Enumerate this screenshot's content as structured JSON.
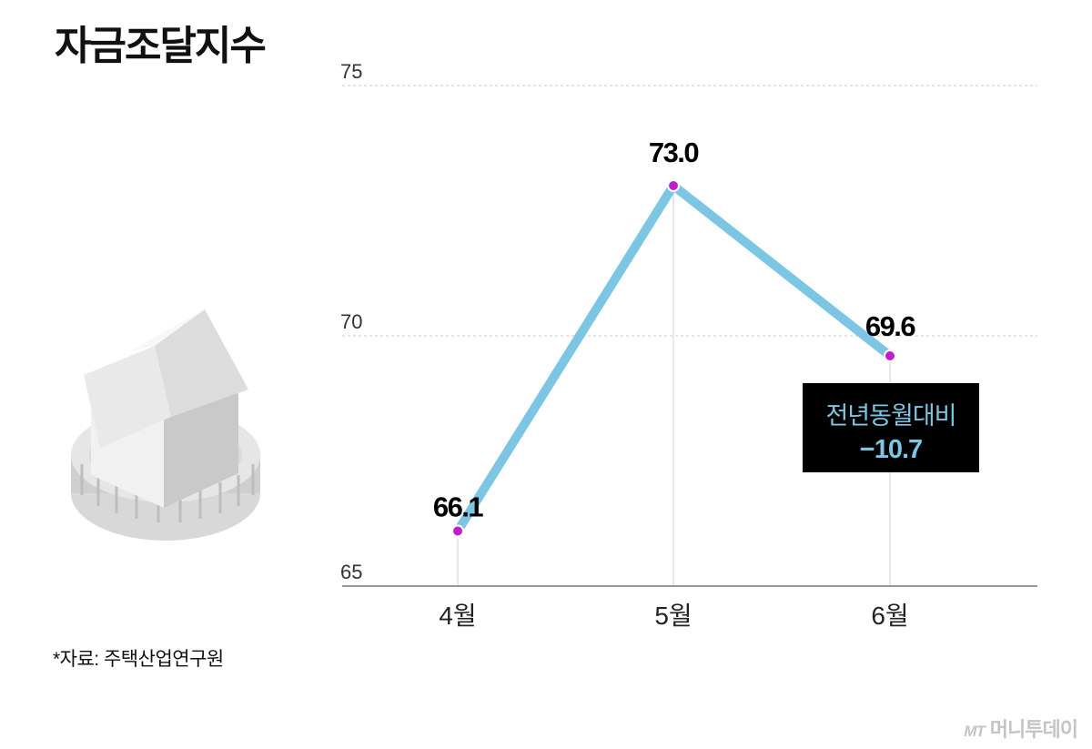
{
  "title": "자금조달지수",
  "source": "*자료: 주택산업연구원",
  "logo": {
    "mark": "MT",
    "name": "머니투데이"
  },
  "callout": {
    "line1": "전년동월대비",
    "line2": "−10.7"
  },
  "colors": {
    "line": "#7cc6e4",
    "point": "#c01ec9",
    "callout_bg": "#000000"
  },
  "chart_data": {
    "type": "line",
    "title": "자금조달지수",
    "categories": [
      "4월",
      "5월",
      "6월"
    ],
    "values": [
      66.1,
      73.0,
      69.6
    ],
    "value_labels": [
      "66.1",
      "73.0",
      "69.6"
    ],
    "y_ticks": [
      "65",
      "70",
      "75"
    ],
    "ylim": [
      65,
      75
    ],
    "grid": "dashed horizontal at 70 and 75",
    "annotation": {
      "text": "전년동월대비 −10.7",
      "attached_to": "6월"
    }
  }
}
